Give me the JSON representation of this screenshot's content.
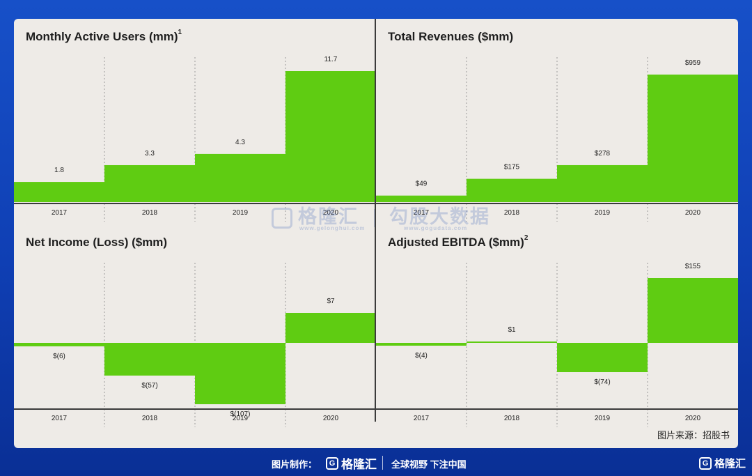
{
  "colors": {
    "bar": "#5fcc12",
    "text": "#1e1e1e",
    "axis": "#3b3b3b",
    "background": "#eeebe7"
  },
  "chart_data": [
    {
      "type": "bar",
      "title": "Monthly Active Users (mm)",
      "title_sup": "1",
      "categories": [
        "2017",
        "2018",
        "2019",
        "2020"
      ],
      "values": [
        1.8,
        3.3,
        4.3,
        11.7
      ],
      "labels": [
        "1.8",
        "3.3",
        "4.3",
        "11.7"
      ],
      "ylim": [
        0,
        11.7
      ]
    },
    {
      "type": "bar",
      "title": "Total Revenues ($mm)",
      "title_sup": "",
      "categories": [
        "2017",
        "2018",
        "2019",
        "2020"
      ],
      "values": [
        49,
        175,
        278,
        959
      ],
      "labels": [
        "$49",
        "$175",
        "$278",
        "$959"
      ],
      "ylim": [
        0,
        959
      ]
    },
    {
      "type": "bar",
      "title": "Net Income (Loss) ($mm)",
      "title_sup": "",
      "categories": [
        "2017",
        "2018",
        "2019",
        "2020"
      ],
      "values": [
        -6,
        -57,
        -107,
        7
      ],
      "labels": [
        "$(6)",
        "$(57)",
        "$(107)",
        "$7"
      ],
      "ylim": [
        -107,
        7
      ]
    },
    {
      "type": "bar",
      "title": "Adjusted EBITDA ($mm)",
      "title_sup": "2",
      "categories": [
        "2017",
        "2018",
        "2019",
        "2020"
      ],
      "values": [
        -4,
        1,
        -74,
        155
      ],
      "labels": [
        "$(4)",
        "$1",
        "$(74)",
        "$155"
      ],
      "ylim": [
        -74,
        155
      ]
    }
  ],
  "watermark": {
    "brand": "格隆汇",
    "brand_url": "www.gelonghui.com",
    "data": "勾股大数据",
    "data_url": "www.gogudata.com"
  },
  "source": "图片来源：招股书",
  "footer": {
    "made_by": "图片制作：",
    "brand": "格隆汇",
    "slogan": "全球视野 下注中国",
    "corner_brand": "格隆汇",
    "logo_letter": "G"
  }
}
